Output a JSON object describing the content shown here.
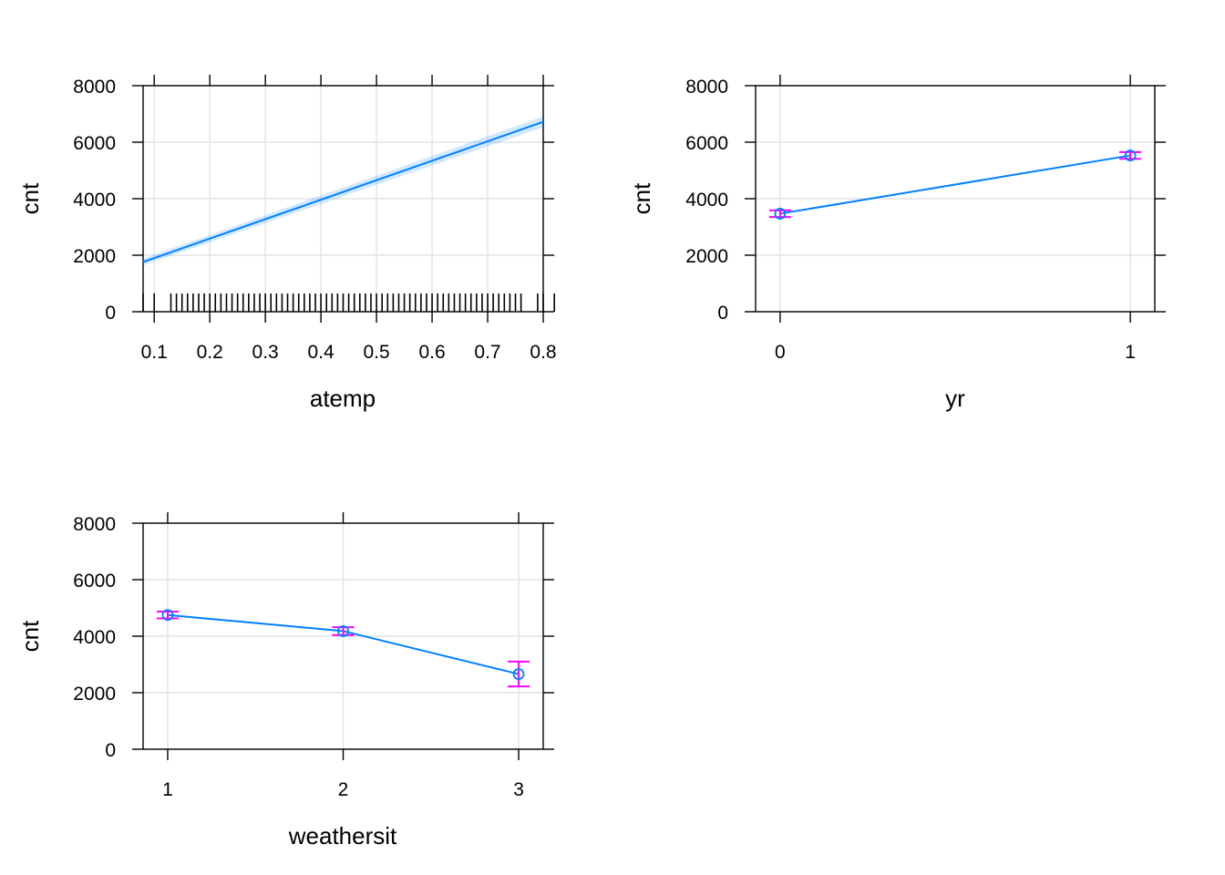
{
  "chart_data": [
    {
      "type": "line",
      "xlabel": "atemp",
      "ylabel": "cnt",
      "xlim": [
        0.08,
        0.8
      ],
      "ylim": [
        0,
        8000
      ],
      "x_ticks": [
        0.1,
        0.2,
        0.3,
        0.4,
        0.5,
        0.6,
        0.7,
        0.8
      ],
      "x_tick_labels": [
        "0.1",
        "0.2",
        "0.3",
        "0.4",
        "0.5",
        "0.6",
        "0.7",
        "0.8"
      ],
      "y_ticks": [
        0,
        2000,
        4000,
        6000,
        8000
      ],
      "y_tick_labels": [
        "0",
        "2000",
        "4000",
        "6000",
        "8000"
      ],
      "grid": true,
      "x": [
        0.08,
        0.8
      ],
      "y": [
        1760,
        6720
      ],
      "ci_lower": [
        1640,
        6530
      ],
      "ci_upper": [
        1880,
        6910
      ],
      "rug_x": [
        0.08,
        0.1,
        0.13,
        0.14,
        0.15,
        0.16,
        0.17,
        0.18,
        0.19,
        0.2,
        0.21,
        0.22,
        0.23,
        0.24,
        0.25,
        0.26,
        0.27,
        0.28,
        0.29,
        0.3,
        0.31,
        0.32,
        0.33,
        0.34,
        0.35,
        0.36,
        0.37,
        0.38,
        0.39,
        0.4,
        0.41,
        0.42,
        0.43,
        0.44,
        0.45,
        0.46,
        0.47,
        0.48,
        0.49,
        0.5,
        0.51,
        0.52,
        0.53,
        0.54,
        0.55,
        0.56,
        0.57,
        0.58,
        0.59,
        0.6,
        0.61,
        0.62,
        0.63,
        0.64,
        0.65,
        0.66,
        0.67,
        0.68,
        0.69,
        0.7,
        0.71,
        0.72,
        0.73,
        0.74,
        0.75,
        0.76,
        0.79,
        0.8,
        0.82
      ]
    },
    {
      "type": "scatter",
      "xlabel": "yr",
      "ylabel": "cnt",
      "xlim": [
        -0.07,
        1.07
      ],
      "ylim": [
        0,
        8000
      ],
      "x_ticks": [
        0,
        1
      ],
      "x_tick_labels": [
        "0",
        "1"
      ],
      "y_ticks": [
        0,
        2000,
        4000,
        6000,
        8000
      ],
      "y_tick_labels": [
        "0",
        "2000",
        "4000",
        "6000",
        "8000"
      ],
      "grid": true,
      "x": [
        0,
        1
      ],
      "y": [
        3470,
        5530
      ],
      "lower": [
        3350,
        5410
      ],
      "upper": [
        3590,
        5650
      ]
    },
    {
      "type": "scatter",
      "xlabel": "weathersit",
      "ylabel": "cnt",
      "xlim": [
        0.86,
        3.14
      ],
      "ylim": [
        0,
        8000
      ],
      "x_ticks": [
        1,
        2,
        3
      ],
      "x_tick_labels": [
        "1",
        "2",
        "3"
      ],
      "y_ticks": [
        0,
        2000,
        4000,
        6000,
        8000
      ],
      "y_tick_labels": [
        "0",
        "2000",
        "4000",
        "6000",
        "8000"
      ],
      "grid": true,
      "x": [
        1,
        2,
        3
      ],
      "y": [
        4750,
        4180,
        2660
      ],
      "lower": [
        4630,
        4040,
        2220
      ],
      "upper": [
        4870,
        4320,
        3100
      ]
    }
  ],
  "colors": {
    "fit_line": "#0080ff",
    "error_bars": "#ff00ff",
    "grid": "#e3e3e3",
    "frame": "#000000"
  }
}
